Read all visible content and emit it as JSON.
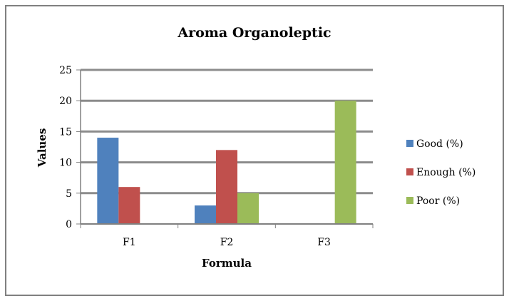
{
  "chart_data": {
    "type": "bar",
    "title": "Aroma Organoleptic",
    "xlabel": "Formula",
    "ylabel": "Values",
    "categories": [
      "F1",
      "F2",
      "F3"
    ],
    "series": [
      {
        "name": "Good (%)",
        "values": [
          14,
          3,
          0
        ],
        "color": "#4F81BD"
      },
      {
        "name": "Enough (%)",
        "values": [
          6,
          12,
          0
        ],
        "color": "#C0504D"
      },
      {
        "name": "Poor (%)",
        "values": [
          0,
          5,
          20
        ],
        "color": "#9BBB59"
      }
    ],
    "ylim": [
      0,
      25
    ],
    "yticks": [
      0,
      5,
      10,
      15,
      20,
      25
    ],
    "grid": true,
    "legend_position": "right"
  }
}
